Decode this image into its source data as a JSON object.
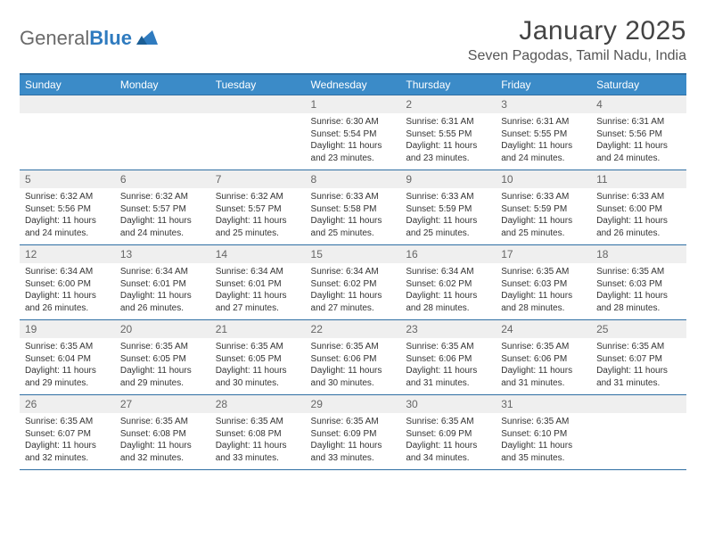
{
  "logo": {
    "text1": "General",
    "text2": "Blue"
  },
  "title": "January 2025",
  "location": "Seven Pagodas, Tamil Nadu, India",
  "colors": {
    "header_bg": "#3b8bc8",
    "header_border": "#2f6fa3",
    "daynum_bg": "#efefef",
    "text": "#333333",
    "logo_gray": "#6a6a6a",
    "logo_blue": "#2f7bbf"
  },
  "weekdays": [
    "Sunday",
    "Monday",
    "Tuesday",
    "Wednesday",
    "Thursday",
    "Friday",
    "Saturday"
  ],
  "weeks": [
    [
      null,
      null,
      null,
      {
        "n": "1",
        "sr": "6:30 AM",
        "ss": "5:54 PM",
        "dl": "11 hours and 23 minutes."
      },
      {
        "n": "2",
        "sr": "6:31 AM",
        "ss": "5:55 PM",
        "dl": "11 hours and 23 minutes."
      },
      {
        "n": "3",
        "sr": "6:31 AM",
        "ss": "5:55 PM",
        "dl": "11 hours and 24 minutes."
      },
      {
        "n": "4",
        "sr": "6:31 AM",
        "ss": "5:56 PM",
        "dl": "11 hours and 24 minutes."
      }
    ],
    [
      {
        "n": "5",
        "sr": "6:32 AM",
        "ss": "5:56 PM",
        "dl": "11 hours and 24 minutes."
      },
      {
        "n": "6",
        "sr": "6:32 AM",
        "ss": "5:57 PM",
        "dl": "11 hours and 24 minutes."
      },
      {
        "n": "7",
        "sr": "6:32 AM",
        "ss": "5:57 PM",
        "dl": "11 hours and 25 minutes."
      },
      {
        "n": "8",
        "sr": "6:33 AM",
        "ss": "5:58 PM",
        "dl": "11 hours and 25 minutes."
      },
      {
        "n": "9",
        "sr": "6:33 AM",
        "ss": "5:59 PM",
        "dl": "11 hours and 25 minutes."
      },
      {
        "n": "10",
        "sr": "6:33 AM",
        "ss": "5:59 PM",
        "dl": "11 hours and 25 minutes."
      },
      {
        "n": "11",
        "sr": "6:33 AM",
        "ss": "6:00 PM",
        "dl": "11 hours and 26 minutes."
      }
    ],
    [
      {
        "n": "12",
        "sr": "6:34 AM",
        "ss": "6:00 PM",
        "dl": "11 hours and 26 minutes."
      },
      {
        "n": "13",
        "sr": "6:34 AM",
        "ss": "6:01 PM",
        "dl": "11 hours and 26 minutes."
      },
      {
        "n": "14",
        "sr": "6:34 AM",
        "ss": "6:01 PM",
        "dl": "11 hours and 27 minutes."
      },
      {
        "n": "15",
        "sr": "6:34 AM",
        "ss": "6:02 PM",
        "dl": "11 hours and 27 minutes."
      },
      {
        "n": "16",
        "sr": "6:34 AM",
        "ss": "6:02 PM",
        "dl": "11 hours and 28 minutes."
      },
      {
        "n": "17",
        "sr": "6:35 AM",
        "ss": "6:03 PM",
        "dl": "11 hours and 28 minutes."
      },
      {
        "n": "18",
        "sr": "6:35 AM",
        "ss": "6:03 PM",
        "dl": "11 hours and 28 minutes."
      }
    ],
    [
      {
        "n": "19",
        "sr": "6:35 AM",
        "ss": "6:04 PM",
        "dl": "11 hours and 29 minutes."
      },
      {
        "n": "20",
        "sr": "6:35 AM",
        "ss": "6:05 PM",
        "dl": "11 hours and 29 minutes."
      },
      {
        "n": "21",
        "sr": "6:35 AM",
        "ss": "6:05 PM",
        "dl": "11 hours and 30 minutes."
      },
      {
        "n": "22",
        "sr": "6:35 AM",
        "ss": "6:06 PM",
        "dl": "11 hours and 30 minutes."
      },
      {
        "n": "23",
        "sr": "6:35 AM",
        "ss": "6:06 PM",
        "dl": "11 hours and 31 minutes."
      },
      {
        "n": "24",
        "sr": "6:35 AM",
        "ss": "6:06 PM",
        "dl": "11 hours and 31 minutes."
      },
      {
        "n": "25",
        "sr": "6:35 AM",
        "ss": "6:07 PM",
        "dl": "11 hours and 31 minutes."
      }
    ],
    [
      {
        "n": "26",
        "sr": "6:35 AM",
        "ss": "6:07 PM",
        "dl": "11 hours and 32 minutes."
      },
      {
        "n": "27",
        "sr": "6:35 AM",
        "ss": "6:08 PM",
        "dl": "11 hours and 32 minutes."
      },
      {
        "n": "28",
        "sr": "6:35 AM",
        "ss": "6:08 PM",
        "dl": "11 hours and 33 minutes."
      },
      {
        "n": "29",
        "sr": "6:35 AM",
        "ss": "6:09 PM",
        "dl": "11 hours and 33 minutes."
      },
      {
        "n": "30",
        "sr": "6:35 AM",
        "ss": "6:09 PM",
        "dl": "11 hours and 34 minutes."
      },
      {
        "n": "31",
        "sr": "6:35 AM",
        "ss": "6:10 PM",
        "dl": "11 hours and 35 minutes."
      },
      null
    ]
  ],
  "labels": {
    "sunrise": "Sunrise: ",
    "sunset": "Sunset: ",
    "daylight": "Daylight: "
  }
}
